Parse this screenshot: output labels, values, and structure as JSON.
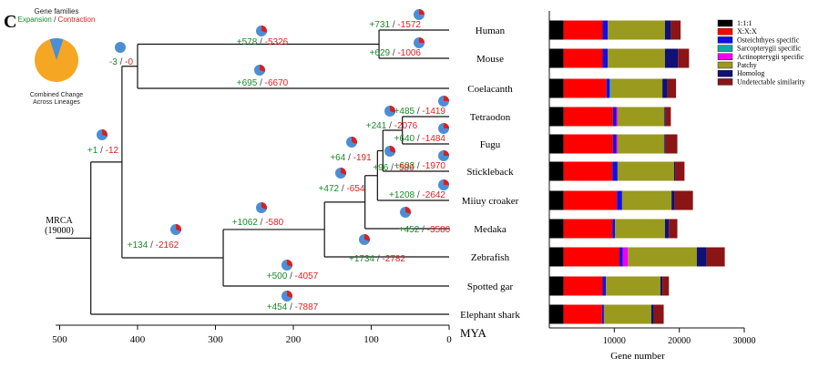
{
  "panel_label": "C",
  "inset": {
    "title": "Gene families",
    "expansion_label": "Expansion",
    "separator": " / ",
    "contraction_label": "Contraction",
    "caption_line1": "Combined Change",
    "caption_line2": "Across Lineages",
    "expansion_fraction": 0.1,
    "colors": {
      "expansion": "#4a8fd6",
      "contraction": "#f5a623"
    }
  },
  "tree": {
    "root_label_line1": "MRCA",
    "root_label_line2": "(19000)",
    "axis_label": "MYA",
    "axis_ticks": [
      500,
      400,
      300,
      200,
      100,
      0
    ],
    "colors": {
      "expansion": "#1a8a2a",
      "contraction": "#e02020",
      "pie_main": "#4a8fd6",
      "pie_slice": "#d92020"
    },
    "taxa": [
      {
        "name": "Human",
        "exp": "+731",
        "con": "-1572"
      },
      {
        "name": "Mouse",
        "exp": "+629",
        "con": "-1006"
      },
      {
        "name": "Coelacanth",
        "exp": "",
        "con": ""
      },
      {
        "name": "Tetraodon",
        "exp": "+485",
        "con": "-1419"
      },
      {
        "name": "Fugu",
        "exp": "+640",
        "con": "-1484"
      },
      {
        "name": "Stickleback",
        "exp": "+603",
        "con": "-1970"
      },
      {
        "name": "Miiuy croaker",
        "exp": "+1208",
        "con": "-2642"
      },
      {
        "name": "Medaka",
        "exp": "+452",
        "con": "-3580"
      },
      {
        "name": "Zebrafish",
        "exp": "+1734",
        "con": "-2782"
      },
      {
        "name": "Spotted gar",
        "exp": "+500",
        "con": "-4057"
      },
      {
        "name": "Elephant shark",
        "exp": "+454",
        "con": "-7887"
      }
    ],
    "nodes": [
      {
        "id": "mammals",
        "exp": "+578",
        "con": "-5326"
      },
      {
        "id": "tetrapods",
        "exp": "-3",
        "con": "-0"
      },
      {
        "id": "coelacanth-branch",
        "exp": "+695",
        "con": "-6670"
      },
      {
        "id": "sarcopterygii",
        "exp": "+1",
        "con": "-12"
      },
      {
        "id": "pufferfish",
        "exp": "+241",
        "con": "-2076"
      },
      {
        "id": "percomorph-a",
        "exp": "+64",
        "con": "-191"
      },
      {
        "id": "percomorph-b",
        "exp": "+96",
        "con": "-586"
      },
      {
        "id": "percomorpha",
        "exp": "+472",
        "con": "-654"
      },
      {
        "id": "clupeocephala",
        "exp": "+1062",
        "con": "-580"
      },
      {
        "id": "actinopterygii",
        "exp": "+134",
        "con": "-2162"
      }
    ]
  },
  "chart_data": {
    "type": "bar",
    "stacked": true,
    "orientation": "horizontal",
    "xlabel": "Gene number",
    "xlim": [
      0,
      30000
    ],
    "xticks": [
      10000,
      20000,
      30000
    ],
    "categories": [
      "Human",
      "Mouse",
      "Coelacanth",
      "Tetraodon",
      "Fugu",
      "Stickleback",
      "Miiuy croaker",
      "Medaka",
      "Zebrafish",
      "Spotted gar",
      "Elephant shark"
    ],
    "series": [
      {
        "name": "1:1:1",
        "color": "#000000",
        "values": [
          2200,
          2200,
          2200,
          2200,
          2200,
          2200,
          2200,
          2200,
          2200,
          2200,
          2200
        ]
      },
      {
        "name": "X:X:X",
        "color": "#ff0000",
        "values": [
          6000,
          6000,
          6600,
          7600,
          7600,
          7500,
          8200,
          7500,
          8600,
          6000,
          5900
        ]
      },
      {
        "name": "Osteichthyes specific",
        "color": "#1010e0",
        "values": [
          800,
          800,
          500,
          500,
          500,
          800,
          800,
          400,
          500,
          500,
          300
        ]
      },
      {
        "name": "Sarcopterygii specific",
        "color": "#16a5a5",
        "values": [
          0,
          0,
          200,
          0,
          0,
          0,
          0,
          0,
          0,
          0,
          0
        ]
      },
      {
        "name": "Actinopterygii specific",
        "color": "#ee00ee",
        "values": [
          0,
          0,
          0,
          200,
          200,
          0,
          0,
          0,
          800,
          0,
          0
        ]
      },
      {
        "name": "Patchy",
        "color": "#9a9a1e",
        "values": [
          8800,
          8800,
          7900,
          7200,
          7200,
          8700,
          7600,
          7700,
          10600,
          8400,
          7300
        ]
      },
      {
        "name": "Homolog",
        "color": "#101075",
        "values": [
          900,
          2000,
          800,
          200,
          200,
          200,
          500,
          600,
          1500,
          300,
          400
        ]
      },
      {
        "name": "Undetectable similarity",
        "color": "#8b1414",
        "values": [
          1500,
          1700,
          1300,
          800,
          1800,
          1400,
          2800,
          1300,
          2800,
          1000,
          1500
        ]
      }
    ]
  }
}
